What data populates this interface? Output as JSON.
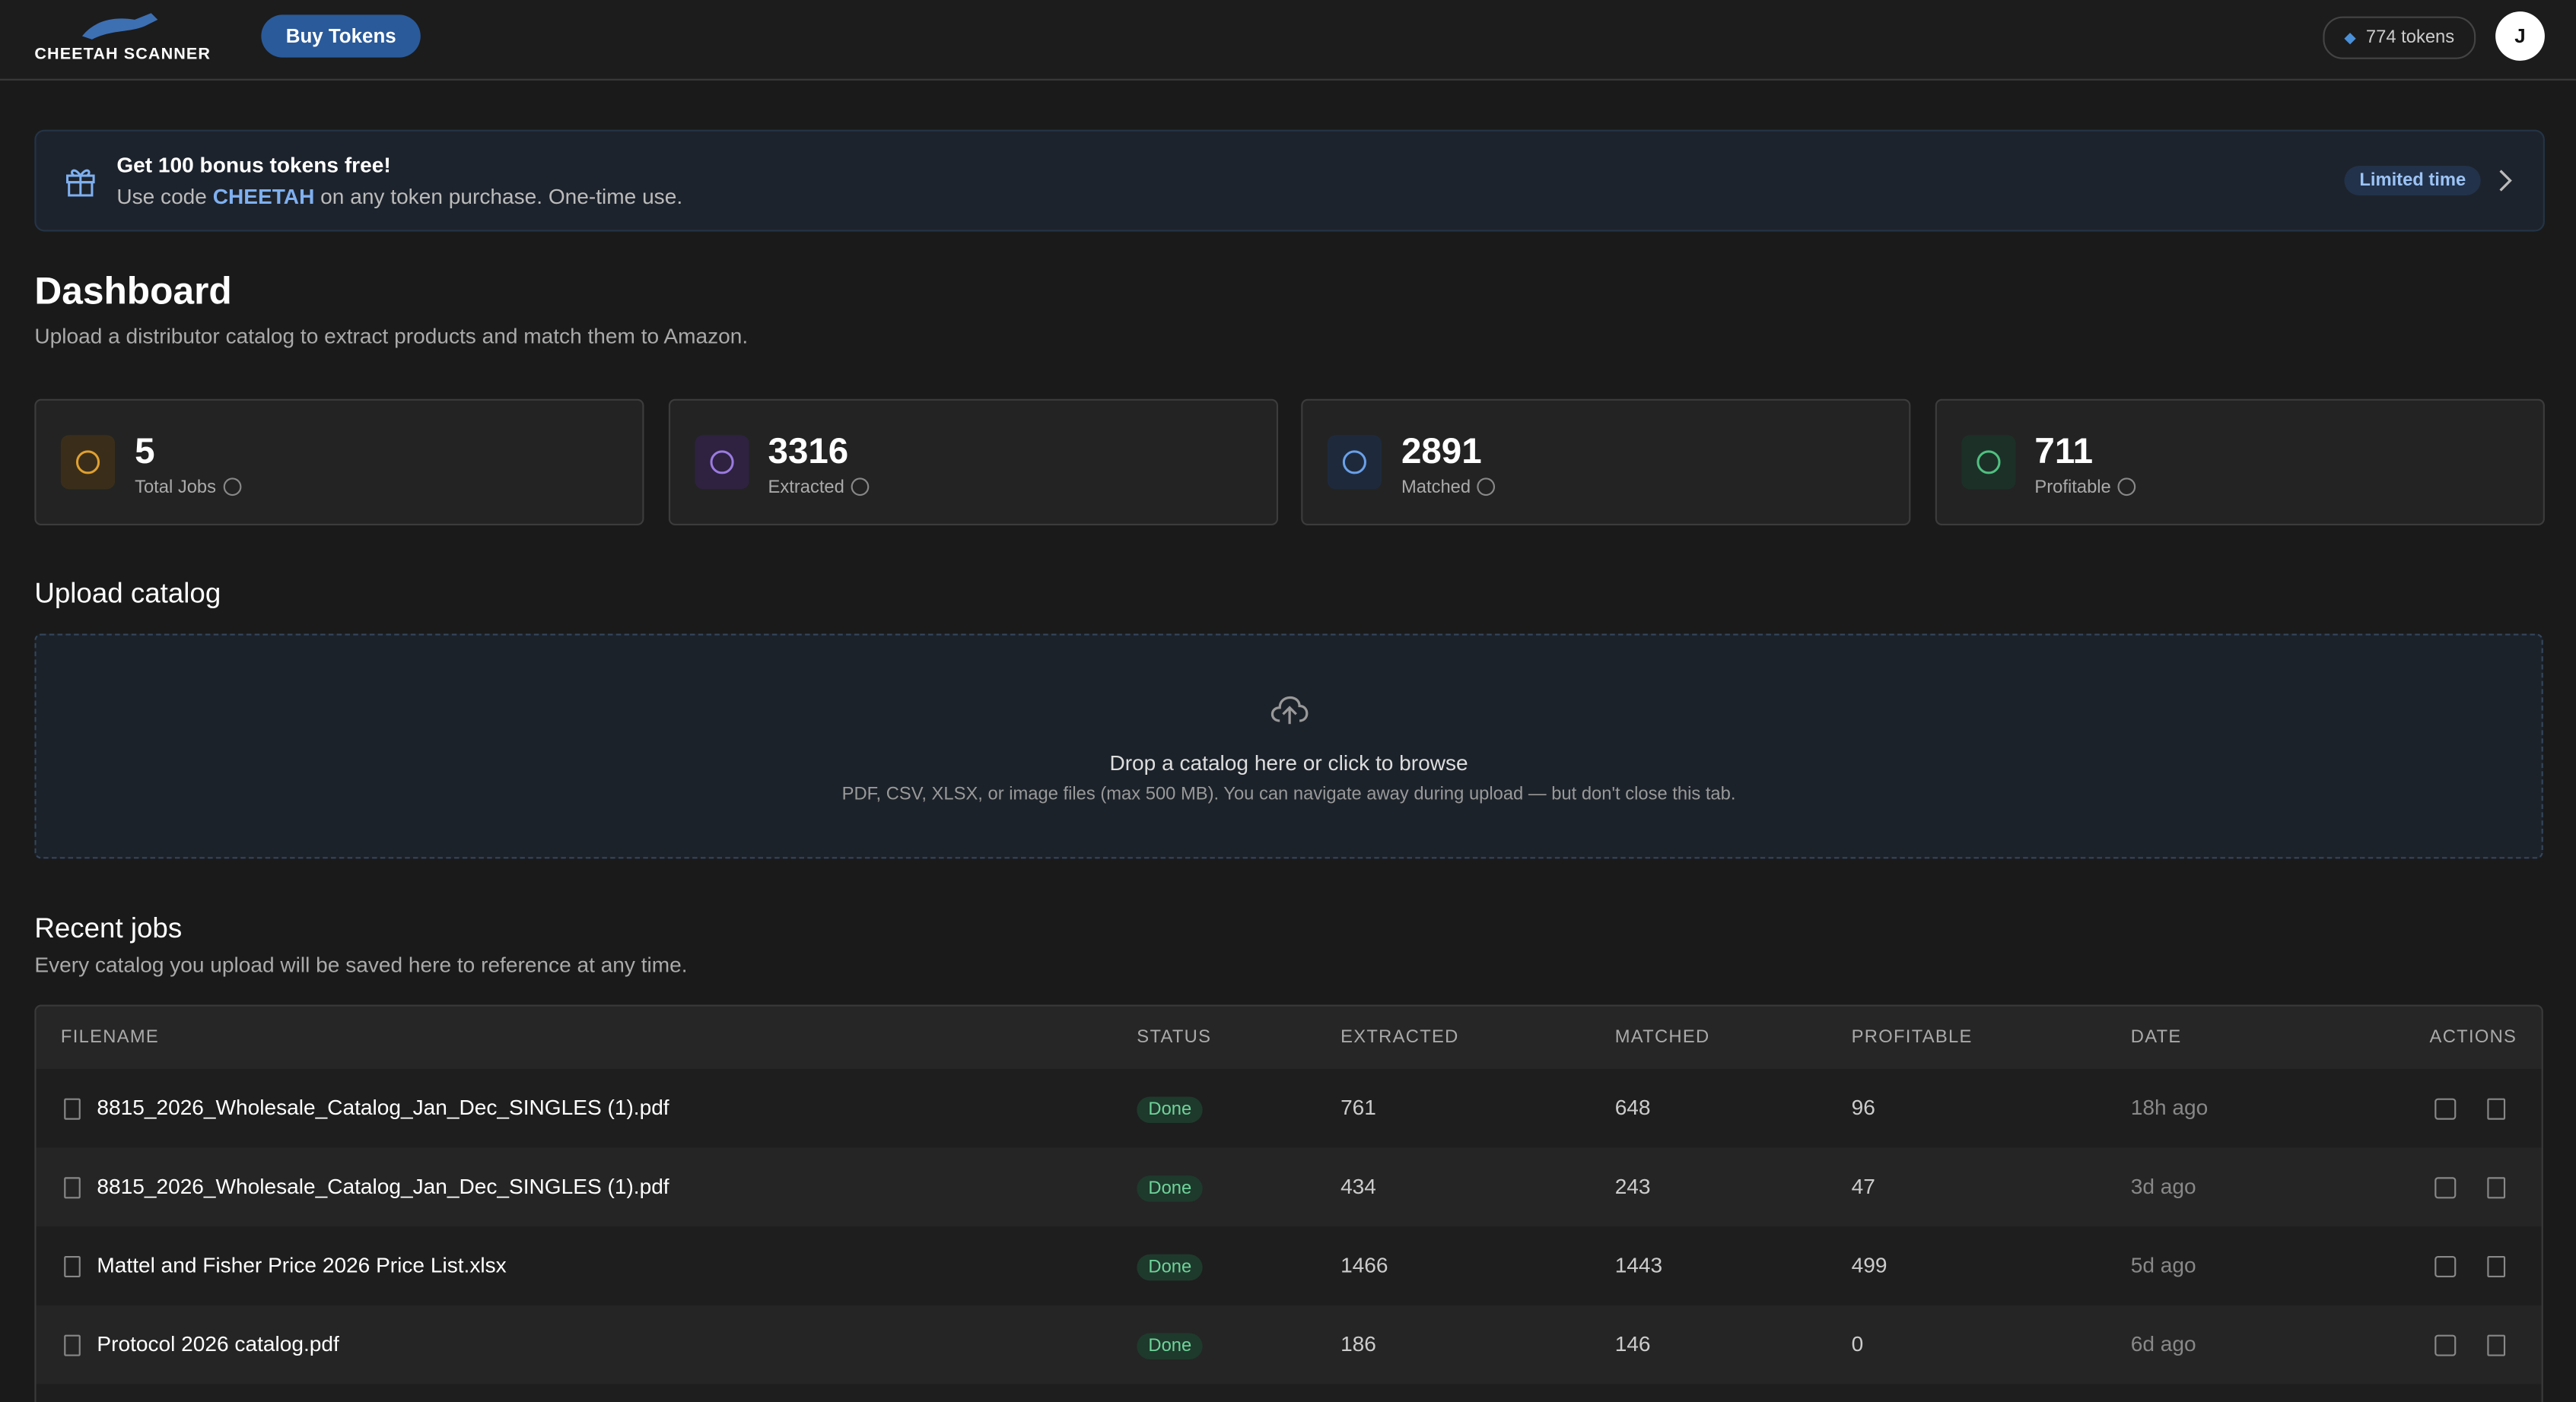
{
  "header": {
    "brand": "CHEETAH SCANNER",
    "buy_tokens": "Buy Tokens",
    "tokens": "774 tokens",
    "avatar": "J"
  },
  "banner": {
    "title": "Get 100 bonus tokens free!",
    "text_before": "Use code",
    "code": "CHEETAH",
    "text_after": "on any token purchase. One-time use.",
    "badge": "Limited time"
  },
  "dashboard": {
    "title": "Dashboard",
    "subtitle": "Upload a distributor catalog to extract products and match them to Amazon."
  },
  "stats": [
    {
      "value": "5",
      "label": "Total Jobs"
    },
    {
      "value": "3316",
      "label": "Extracted"
    },
    {
      "value": "2891",
      "label": "Matched"
    },
    {
      "value": "711",
      "label": "Profitable"
    }
  ],
  "upload": {
    "title": "Upload catalog",
    "prompt": "Drop a catalog here or click to browse",
    "hint": "PDF, CSV, XLSX, or image files (max 500 MB). You can navigate away during upload — but don't close this tab."
  },
  "jobs": {
    "title": "Recent jobs",
    "subtitle": "Every catalog you upload will be saved here to reference at any time.",
    "columns": [
      "FILENAME",
      "STATUS",
      "EXTRACTED",
      "MATCHED",
      "PROFITABLE",
      "DATE",
      "ACTIONS"
    ],
    "rows": [
      [
        "8815_2026_Wholesale_Catalog_Jan_Dec_SINGLES (1).pdf",
        "Done",
        "761",
        "648",
        "96",
        "18h ago"
      ],
      [
        "8815_2026_Wholesale_Catalog_Jan_Dec_SINGLES (1).pdf",
        "Done",
        "434",
        "243",
        "47",
        "3d ago"
      ],
      [
        "Mattel and Fisher Price 2026 Price List.xlsx",
        "Done",
        "1466",
        "1443",
        "499",
        "5d ago"
      ],
      [
        "Protocol 2026 catalog.pdf",
        "Done",
        "186",
        "146",
        "0",
        "6d ago"
      ]
    ]
  }
}
